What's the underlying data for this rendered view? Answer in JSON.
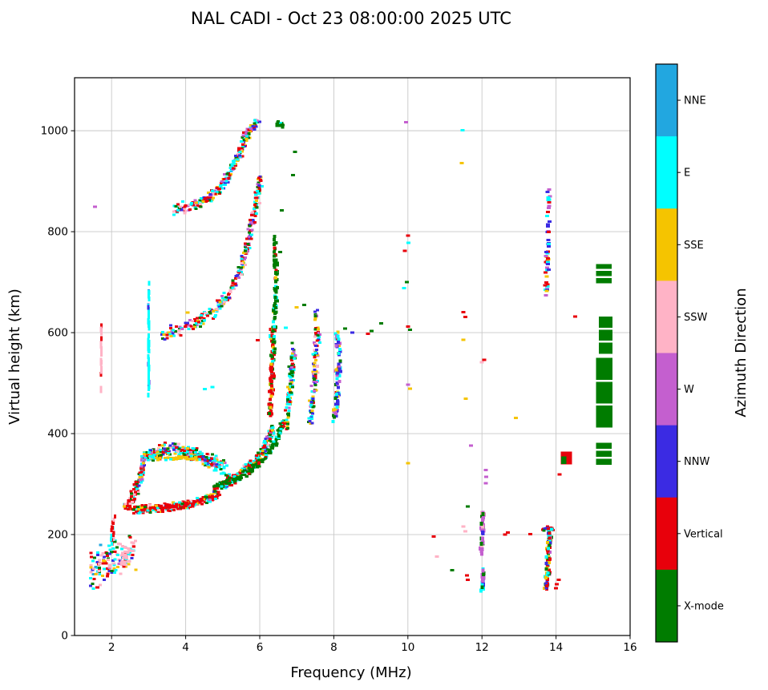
{
  "chart_data": {
    "type": "scatter",
    "title": "NAL CADI - Oct 23 08:00:00 2025 UTC",
    "xlabel": "Frequency (MHz)",
    "ylabel": "Virtual height (km)",
    "colorbar_label": "Azimuth Direction",
    "xlim": [
      1.0,
      16
    ],
    "ylim": [
      0,
      1105
    ],
    "xticks": [
      2,
      4,
      6,
      8,
      10,
      12,
      14,
      16
    ],
    "yticks": [
      0,
      200,
      400,
      600,
      800,
      1000
    ],
    "grid": true,
    "legend_position": "right-colorbar",
    "seed": 42,
    "categories": [
      {
        "key": "NNE",
        "label": "NNE",
        "color": "#22A7E0"
      },
      {
        "key": "E",
        "label": "E",
        "color": "#00FFFF"
      },
      {
        "key": "SSE",
        "label": "SSE",
        "color": "#F5C400"
      },
      {
        "key": "SSW",
        "label": "SSW",
        "color": "#FFB3C6"
      },
      {
        "key": "W",
        "label": "W",
        "color": "#C45FCF"
      },
      {
        "key": "NNW",
        "label": "NNW",
        "color": "#3B2BE3"
      },
      {
        "key": "V",
        "label": "Vertical",
        "color": "#E8000B"
      },
      {
        "key": "X",
        "label": "X-mode",
        "color": "#007C00"
      }
    ],
    "bands": [
      {
        "name": "low-scatter",
        "path": [
          [
            1.45,
            130
          ],
          [
            1.8,
            145
          ],
          [
            2.15,
            155
          ],
          [
            2.55,
            168
          ]
        ],
        "spread": 48,
        "fspread": 0.13,
        "n": 115,
        "mix": {
          "E": 0.22,
          "V": 0.24,
          "SSW": 0.2,
          "X": 0.1,
          "SSE": 0.1,
          "NNW": 0.06,
          "W": 0.04,
          "NNE": 0.04
        }
      },
      {
        "name": "pink-patch",
        "path": [
          [
            2.3,
            150
          ],
          [
            2.45,
            163
          ],
          [
            2.58,
            178
          ]
        ],
        "spread": 22,
        "fspread": 0.1,
        "n": 45,
        "mix": {
          "SSW": 0.8,
          "V": 0.1,
          "E": 0.1
        }
      },
      {
        "name": "red-col-2mhz",
        "path": [
          [
            2.0,
            178
          ],
          [
            2.03,
            212
          ],
          [
            2.06,
            238
          ]
        ],
        "spread": 8,
        "fspread": 0.05,
        "n": 18,
        "size": [
          3,
          5
        ],
        "mix": {
          "V": 0.55,
          "SSW": 0.3,
          "E": 0.15
        }
      },
      {
        "name": "e-left-blob",
        "path": [
          [
            2.35,
            252
          ],
          [
            2.5,
            262
          ],
          [
            2.62,
            280
          ],
          [
            2.7,
            296
          ]
        ],
        "spread": 12,
        "fspread": 0.08,
        "n": 70,
        "mix": {
          "V": 0.5,
          "E": 0.2,
          "SSW": 0.1,
          "SSE": 0.1,
          "X": 0.1
        }
      },
      {
        "name": "main-e-band",
        "path": [
          [
            2.6,
            250
          ],
          [
            3.2,
            252
          ],
          [
            3.8,
            256
          ],
          [
            4.4,
            266
          ],
          [
            4.9,
            280
          ]
        ],
        "spread": 9,
        "fspread": 0.07,
        "n": 290,
        "mix": {
          "V": 0.6,
          "E": 0.13,
          "SSE": 0.09,
          "X": 0.07,
          "NNW": 0.04,
          "SSW": 0.04,
          "W": 0.03
        }
      },
      {
        "name": "oval-left-edge",
        "path": [
          [
            2.78,
            302
          ],
          [
            2.83,
            338
          ],
          [
            2.9,
            362
          ]
        ],
        "spread": 12,
        "fspread": 0.07,
        "n": 70,
        "mix": {
          "E": 0.28,
          "V": 0.24,
          "SSE": 0.14,
          "X": 0.12,
          "NNW": 0.1,
          "W": 0.12
        }
      },
      {
        "name": "oval-top-band",
        "path": [
          [
            2.95,
            355
          ],
          [
            3.5,
            368
          ],
          [
            4.1,
            362
          ],
          [
            4.6,
            348
          ],
          [
            5.05,
            332
          ]
        ],
        "spread": 16,
        "fspread": 0.08,
        "n": 290,
        "mix": {
          "E": 0.3,
          "V": 0.18,
          "SSE": 0.14,
          "X": 0.12,
          "NNW": 0.08,
          "SSW": 0.08,
          "W": 0.1
        }
      },
      {
        "name": "gold-streak",
        "path": [
          [
            3.15,
            350
          ],
          [
            3.8,
            352
          ],
          [
            4.35,
            350
          ]
        ],
        "spread": 4,
        "fspread": 0.07,
        "n": 55,
        "mix": {
          "SSE": 0.72,
          "E": 0.14,
          "V": 0.14
        }
      },
      {
        "name": "f-rise-band",
        "path": [
          [
            5.0,
            300
          ],
          [
            5.45,
            318
          ],
          [
            5.85,
            342
          ],
          [
            6.15,
            372
          ],
          [
            6.35,
            412
          ]
        ],
        "spread": 13,
        "fspread": 0.07,
        "n": 235,
        "mix": {
          "V": 0.28,
          "E": 0.26,
          "SSE": 0.12,
          "X": 0.12,
          "NNW": 0.08,
          "SSW": 0.06,
          "W": 0.08
        }
      },
      {
        "name": "x-mode-band",
        "path": [
          [
            4.75,
            292
          ],
          [
            5.3,
            308
          ],
          [
            5.8,
            328
          ],
          [
            6.2,
            356
          ],
          [
            6.5,
            392
          ],
          [
            6.62,
            425
          ]
        ],
        "spread": 9,
        "fspread": 0.06,
        "n": 175,
        "mix": {
          "X": 0.8,
          "V": 0.1,
          "E": 0.1
        }
      },
      {
        "name": "cusp-red-column",
        "path": [
          [
            6.27,
            430
          ],
          [
            6.32,
            495
          ],
          [
            6.36,
            555
          ],
          [
            6.32,
            598
          ]
        ],
        "spread": 22,
        "fspread": 0.06,
        "n": 85,
        "size": [
          4,
          4
        ],
        "mix": {
          "V": 0.58,
          "X": 0.18,
          "E": 0.1,
          "SSE": 0.14
        }
      },
      {
        "name": "cusp-column-2",
        "path": [
          [
            6.72,
            420
          ],
          [
            6.8,
            470
          ],
          [
            6.86,
            520
          ],
          [
            6.9,
            558
          ]
        ],
        "spread": 26,
        "fspread": 0.08,
        "n": 100,
        "mix": {
          "X": 0.34,
          "E": 0.2,
          "SSE": 0.16,
          "V": 0.14,
          "NNW": 0.1,
          "W": 0.06
        }
      },
      {
        "name": "column-7_5",
        "path": [
          [
            7.35,
            415
          ],
          [
            7.45,
            475
          ],
          [
            7.52,
            540
          ],
          [
            7.55,
            600
          ],
          [
            7.5,
            635
          ]
        ],
        "spread": 24,
        "fspread": 0.09,
        "n": 115,
        "mix": {
          "E": 0.24,
          "X": 0.2,
          "SSE": 0.16,
          "NNW": 0.14,
          "V": 0.1,
          "W": 0.1,
          "SSW": 0.06
        }
      },
      {
        "name": "column-8_1",
        "path": [
          [
            8.05,
            435
          ],
          [
            8.1,
            495
          ],
          [
            8.15,
            555
          ],
          [
            8.1,
            600
          ]
        ],
        "spread": 20,
        "fspread": 0.08,
        "n": 80,
        "size": [
          4,
          4
        ],
        "mix": {
          "NNW": 0.28,
          "W": 0.2,
          "E": 0.2,
          "X": 0.16,
          "SSE": 0.1,
          "V": 0.06
        }
      },
      {
        "name": "second-hop-trace",
        "path": [
          [
            3.35,
            598
          ],
          [
            3.8,
            606
          ],
          [
            4.3,
            620
          ],
          [
            4.8,
            644
          ],
          [
            5.2,
            678
          ],
          [
            5.5,
            726
          ],
          [
            5.72,
            788
          ],
          [
            5.9,
            858
          ],
          [
            6.02,
            905
          ]
        ],
        "spread": 15,
        "fspread": 0.08,
        "n": 270,
        "mix": {
          "V": 0.3,
          "E": 0.2,
          "X": 0.14,
          "SSE": 0.12,
          "NNW": 0.08,
          "SSW": 0.07,
          "W": 0.09
        }
      },
      {
        "name": "green-column-6_4",
        "path": [
          [
            6.38,
            575
          ],
          [
            6.42,
            645
          ],
          [
            6.45,
            715
          ],
          [
            6.4,
            790
          ]
        ],
        "spread": 28,
        "fspread": 0.06,
        "n": 90,
        "size": [
          4,
          4
        ],
        "mix": {
          "X": 0.76,
          "E": 0.1,
          "V": 0.09,
          "SSE": 0.05
        }
      },
      {
        "name": "third-hop-trace",
        "path": [
          [
            3.7,
            842
          ],
          [
            4.1,
            852
          ],
          [
            4.5,
            862
          ],
          [
            4.9,
            882
          ],
          [
            5.2,
            915
          ],
          [
            5.45,
            955
          ],
          [
            5.62,
            988
          ],
          [
            5.78,
            1008
          ],
          [
            5.95,
            1015
          ]
        ],
        "spread": 13,
        "fspread": 0.07,
        "n": 240,
        "mix": {
          "V": 0.3,
          "E": 0.26,
          "NNW": 0.1,
          "X": 0.1,
          "SSE": 0.09,
          "SSW": 0.07,
          "W": 0.08
        }
      },
      {
        "name": "green-top-blob",
        "path": [
          [
            6.45,
            1012
          ],
          [
            6.55,
            1015
          ],
          [
            6.62,
            1010
          ]
        ],
        "spread": 8,
        "fspread": 0.05,
        "n": 18,
        "mix": {
          "X": 0.9,
          "E": 0.1
        }
      },
      {
        "name": "cyan-vline-3mhz",
        "path": [
          [
            3.0,
            478
          ],
          [
            3.0,
            560
          ],
          [
            3.0,
            645
          ],
          [
            3.0,
            728
          ]
        ],
        "spread": 6,
        "fspread": 0.015,
        "n": 55,
        "size": [
          3,
          6
        ],
        "mix": {
          "E": 0.88,
          "NNW": 0.12
        }
      },
      {
        "name": "pink-vline-1_7mhz",
        "path": [
          [
            1.72,
            486
          ],
          [
            1.72,
            552
          ],
          [
            1.72,
            618
          ]
        ],
        "spread": 8,
        "fspread": 0.012,
        "n": 22,
        "size": [
          3,
          6
        ],
        "mix": {
          "SSW": 0.95,
          "V": 0.05
        }
      },
      {
        "name": "column-12-low",
        "path": [
          [
            12.0,
            92
          ],
          [
            12.02,
            112
          ],
          [
            12.03,
            132
          ]
        ],
        "spread": 6,
        "fspread": 0.05,
        "n": 16,
        "size": [
          4,
          5
        ],
        "mix": {
          "W": 0.45,
          "X": 0.2,
          "E": 0.2,
          "NNW": 0.15
        }
      },
      {
        "name": "column-12-mid",
        "path": [
          [
            12.0,
            165
          ],
          [
            12.02,
            205
          ],
          [
            12.03,
            248
          ]
        ],
        "spread": 8,
        "fspread": 0.05,
        "n": 34,
        "size": [
          4,
          5
        ],
        "mix": {
          "W": 0.6,
          "X": 0.14,
          "NNW": 0.14,
          "SSW": 0.12
        }
      },
      {
        "name": "column-13_8-low",
        "path": [
          [
            13.74,
            92
          ],
          [
            13.78,
            130
          ],
          [
            13.8,
            168
          ],
          [
            13.82,
            205
          ]
        ],
        "spread": 7,
        "fspread": 0.07,
        "n": 80,
        "size": [
          4,
          4
        ],
        "mix": {
          "V": 0.32,
          "SSE": 0.16,
          "X": 0.2,
          "NNW": 0.14,
          "E": 0.1,
          "W": 0.08
        }
      },
      {
        "name": "cluster-13_7-212",
        "path": [
          [
            13.6,
            208
          ],
          [
            13.75,
            212
          ],
          [
            13.9,
            210
          ]
        ],
        "spread": 5,
        "fspread": 0.06,
        "n": 22,
        "mix": {
          "V": 0.4,
          "NNW": 0.25,
          "X": 0.2,
          "E": 0.15
        }
      },
      {
        "name": "column-13_8-high",
        "path": [
          [
            13.74,
            672
          ],
          [
            13.76,
            728
          ],
          [
            13.78,
            782
          ],
          [
            13.8,
            838
          ],
          [
            13.82,
            886
          ]
        ],
        "spread": 9,
        "fspread": 0.05,
        "n": 48,
        "size": [
          5,
          3
        ],
        "mix": {
          "NNW": 0.26,
          "W": 0.2,
          "V": 0.26,
          "SSE": 0.14,
          "E": 0.14
        }
      }
    ],
    "singles": [
      [
        1.55,
        849,
        "W"
      ],
      [
        1.62,
        95,
        "V"
      ],
      [
        4.05,
        640,
        "SSE"
      ],
      [
        4.52,
        488,
        "E"
      ],
      [
        4.72,
        492,
        "E"
      ],
      [
        5.95,
        585,
        "V"
      ],
      [
        6.7,
        610,
        "E"
      ],
      [
        7.0,
        650,
        "SSE"
      ],
      [
        7.2,
        655,
        "X"
      ],
      [
        6.55,
        760,
        "X"
      ],
      [
        6.6,
        842,
        "X"
      ],
      [
        6.9,
        912,
        "X"
      ],
      [
        6.95,
        958,
        "X"
      ],
      [
        8.3,
        608,
        "X"
      ],
      [
        8.5,
        600,
        "NNW"
      ],
      [
        8.92,
        598,
        "V"
      ],
      [
        9.02,
        603,
        "X"
      ],
      [
        9.28,
        618,
        "X"
      ],
      [
        9.95,
        1017,
        "W"
      ],
      [
        10.0,
        792,
        "V"
      ],
      [
        10.02,
        778,
        "E"
      ],
      [
        9.92,
        762,
        "V"
      ],
      [
        9.97,
        700,
        "X"
      ],
      [
        9.9,
        688,
        "E"
      ],
      [
        10.0,
        612,
        "V"
      ],
      [
        10.06,
        606,
        "X"
      ],
      [
        10.0,
        497,
        "W"
      ],
      [
        10.06,
        489,
        "SSE"
      ],
      [
        10.0,
        341,
        "SSE"
      ],
      [
        10.7,
        196,
        "V"
      ],
      [
        10.78,
        156,
        "SSW"
      ],
      [
        11.2,
        129,
        "X"
      ],
      [
        11.48,
        1001,
        "E"
      ],
      [
        11.45,
        936,
        "SSE"
      ],
      [
        11.5,
        641,
        "V"
      ],
      [
        11.55,
        631,
        "V"
      ],
      [
        11.5,
        586,
        "SSE"
      ],
      [
        11.56,
        469,
        "SSE"
      ],
      [
        11.7,
        376,
        "W"
      ],
      [
        11.62,
        256,
        "X"
      ],
      [
        11.5,
        216,
        "SSW"
      ],
      [
        11.55,
        206,
        "SSW"
      ],
      [
        11.6,
        119,
        "V"
      ],
      [
        11.62,
        110,
        "V"
      ],
      [
        12.1,
        302,
        "W"
      ],
      [
        12.12,
        314,
        "W"
      ],
      [
        12.1,
        328,
        "W"
      ],
      [
        12.0,
        541,
        "SSW"
      ],
      [
        12.06,
        546,
        "V"
      ],
      [
        12.62,
        200,
        "V"
      ],
      [
        12.7,
        204,
        "V"
      ],
      [
        12.92,
        431,
        "SSE"
      ],
      [
        13.3,
        201,
        "V"
      ],
      [
        14.0,
        94,
        "V"
      ],
      [
        14.02,
        102,
        "V"
      ],
      [
        14.07,
        110,
        "V"
      ],
      [
        14.1,
        319,
        "V"
      ],
      [
        14.52,
        632,
        "V"
      ]
    ],
    "blocks": [
      {
        "name": "red-block-14_4",
        "f": [
          14.13,
          14.43
        ],
        "h": [
          339,
          364
        ],
        "color": "V",
        "bars": 0
      },
      {
        "name": "green-inset-14_2",
        "f": [
          14.14,
          14.28
        ],
        "h": [
          340,
          355
        ],
        "color": "X",
        "bars": 0
      },
      {
        "name": "green-block-360",
        "f": [
          15.08,
          15.5
        ],
        "h": [
          338,
          382
        ],
        "color": "X",
        "bars": 3
      },
      {
        "name": "green-block-480",
        "f": [
          15.08,
          15.52
        ],
        "h": [
          412,
          550
        ],
        "color": "X",
        "bars": 3
      },
      {
        "name": "green-block-600",
        "f": [
          15.16,
          15.52
        ],
        "h": [
          558,
          632
        ],
        "color": "X",
        "bars": 3
      },
      {
        "name": "green-block-715",
        "f": [
          15.08,
          15.5
        ],
        "h": [
          698,
          736
        ],
        "color": "X",
        "bars": 3
      }
    ]
  }
}
